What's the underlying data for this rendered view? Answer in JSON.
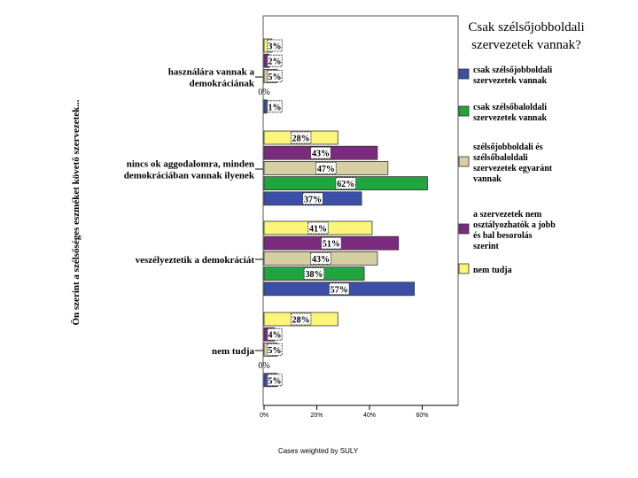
{
  "chart_data": {
    "type": "bar",
    "orientation": "horizontal",
    "ylabel": "Ön szerint a szélsőséges eszméket követő szervezetek...",
    "footer": "Cases weighted by SULY",
    "xlim": [
      0,
      70
    ],
    "ticks": [
      0,
      20,
      40,
      60
    ],
    "tick_labels": [
      "0%",
      "20%",
      "40%",
      "60%"
    ],
    "categories": [
      "használára vannak a demokráciának",
      "nincs ok aggodalomra, minden demokráciában vannak ilyenek",
      "veszélyeztetik a demokráciát",
      "nem tudja"
    ],
    "legend": {
      "title": "Csak szélsőjobboldali szervezetek vannak?",
      "position": "right"
    },
    "series": [
      {
        "name": "csak szélsőjobboldali szervezetek vannak",
        "color": "#3b4fa8",
        "values": [
          1,
          37,
          57,
          5
        ],
        "labels": [
          "1%",
          "37%",
          "57%",
          "5%"
        ]
      },
      {
        "name": "csak szélsőbaloldali szervezetek vannak",
        "color": "#21a63f",
        "values": [
          0,
          62,
          38,
          0
        ],
        "labels": [
          "0%",
          "62%",
          "38%",
          "0%"
        ]
      },
      {
        "name": "szélsőjobboldali és szélsőbaloldali szervezetek egyaránt vannak",
        "color": "#d6cfa2",
        "values": [
          5,
          47,
          43,
          5
        ],
        "labels": [
          "5%",
          "47%",
          "43%",
          "5%"
        ]
      },
      {
        "name": "a szervezetek nem osztályozhatók a jobb és bal besorolás szerint",
        "color": "#7a2b7e",
        "values": [
          2,
          43,
          51,
          4
        ],
        "labels": [
          "2%",
          "43%",
          "51%",
          "4%"
        ]
      },
      {
        "name": "nem tudja",
        "color": "#fbf679",
        "values": [
          3,
          28,
          41,
          28
        ],
        "labels": [
          "3%",
          "28%",
          "41%",
          "28%"
        ]
      }
    ]
  }
}
